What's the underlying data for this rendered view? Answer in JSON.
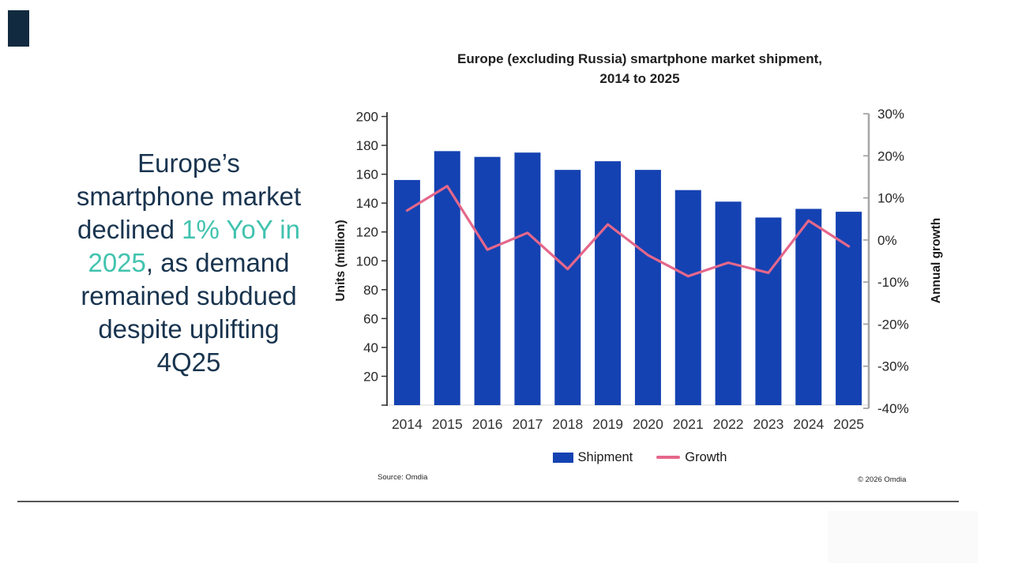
{
  "headline": {
    "segments": [
      {
        "text": "Europe’s\nsmartphone market\ndeclined ",
        "highlight": false
      },
      {
        "text": "1% YoY in\n2025",
        "highlight": true
      },
      {
        "text": ", as demand\nremained subdued\ndespite uplifting\n4Q25",
        "highlight": false
      }
    ],
    "text_color": "#19344f",
    "highlight_color": "#41c3af"
  },
  "notes": {
    "source": "Source: Omdia",
    "copyright": "© 2026 Omdia"
  },
  "chart_data": {
    "type": "bar",
    "subtype": "combo-bar-line-dual-axis",
    "title": "Europe (excluding Russia) smartphone market shipment, 2014 to 2025",
    "title_lines": [
      "Europe (excluding Russia) smartphone market shipment,",
      "2014 to 2025"
    ],
    "categories": [
      "2014",
      "2015",
      "2016",
      "2017",
      "2018",
      "2019",
      "2020",
      "2021",
      "2022",
      "2023",
      "2024",
      "2025"
    ],
    "series": [
      {
        "name": "Shipment",
        "type": "bar",
        "axis": "left",
        "color": "#1542b2",
        "values": [
          156,
          176,
          172,
          175,
          163,
          169,
          163,
          149,
          141,
          130,
          136,
          134
        ]
      },
      {
        "name": "Growth",
        "type": "line",
        "axis": "right",
        "color": "#e4678b",
        "values": [
          7,
          12.8,
          -2.3,
          1.7,
          -6.9,
          3.7,
          -3.6,
          -8.6,
          -5.4,
          -7.8,
          4.6,
          -1.5
        ]
      }
    ],
    "left_axis": {
      "label": "Units (million)",
      "min": 0,
      "max": 200,
      "tick_step": 20,
      "tick_labels": [
        "20",
        "40",
        "60",
        "80",
        "100",
        "120",
        "140",
        "160",
        "180",
        "200"
      ]
    },
    "right_axis": {
      "label": "Annual growth",
      "min": -40,
      "max": 30,
      "tick_step": 10,
      "tick_labels": [
        "30%",
        "20%",
        "10%",
        "0%",
        "-10%",
        "-20%",
        "-30%",
        "-40%"
      ]
    },
    "legend": {
      "position": "bottom",
      "entries": [
        "Shipment",
        "Growth"
      ]
    },
    "grid": false
  }
}
